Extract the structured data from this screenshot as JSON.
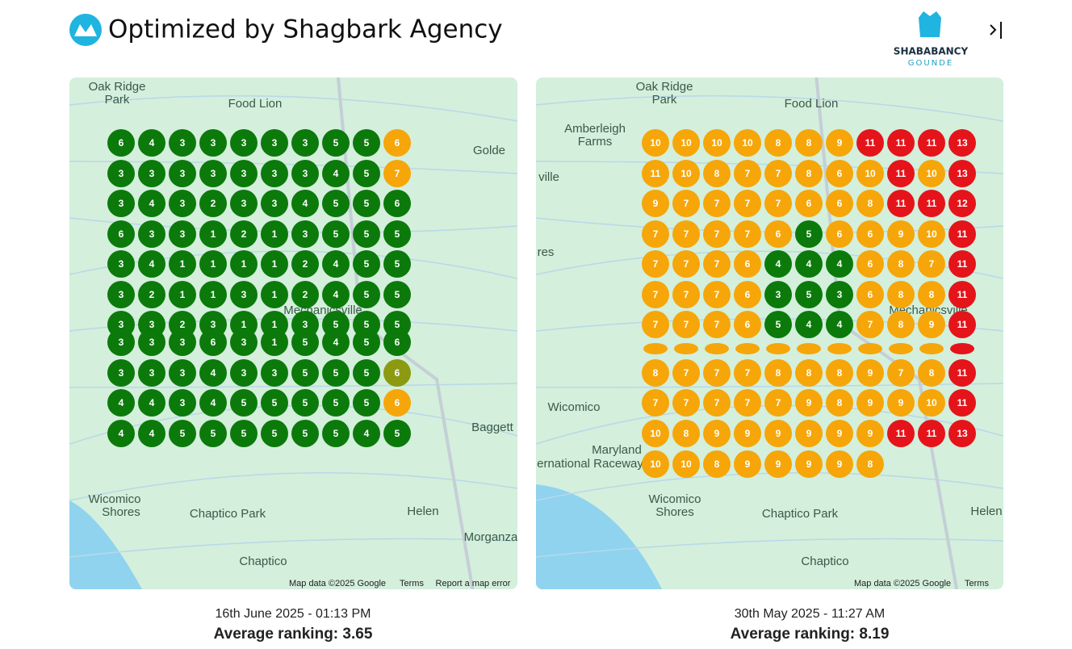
{
  "header": {
    "title": "Optimized by Shagbark Agency",
    "logo_text": "SHABABANCY",
    "logo_subtext": "GOUNDE"
  },
  "palette": {
    "g": "#0b7a0b",
    "o": "#f6a609",
    "r": "#e5141a",
    "y": "#8c9a12"
  },
  "maps": [
    {
      "cells": [
        [
          6,
          4,
          3,
          3,
          3,
          3,
          3,
          5,
          5,
          6
        ],
        [
          3,
          3,
          3,
          3,
          3,
          3,
          3,
          4,
          5,
          7
        ],
        [
          3,
          4,
          3,
          2,
          3,
          3,
          4,
          5,
          5,
          6
        ],
        [
          6,
          3,
          3,
          1,
          2,
          1,
          3,
          5,
          5,
          5
        ],
        [
          3,
          4,
          1,
          1,
          1,
          1,
          2,
          4,
          5,
          5
        ],
        [
          3,
          2,
          1,
          1,
          3,
          1,
          2,
          4,
          5,
          5
        ],
        [
          3,
          3,
          2,
          3,
          1,
          1,
          3,
          5,
          5,
          5
        ],
        [
          3,
          3,
          3,
          6,
          3,
          1,
          5,
          4,
          5,
          6
        ],
        [
          3,
          3,
          3,
          4,
          3,
          3,
          5,
          5,
          5,
          6
        ],
        [
          4,
          4,
          3,
          4,
          5,
          5,
          5,
          5,
          5,
          6
        ],
        [
          4,
          4,
          5,
          5,
          5,
          5,
          5,
          5,
          4,
          5
        ]
      ],
      "colors": [
        "gggggggggo",
        "gggggggggo",
        "gggggggggg",
        "gggggggggg",
        "gggggggggg",
        "gggggggggg",
        "gggggggggg",
        "gggggggggg",
        "gggggggggy",
        "gggggggggo",
        "gggggggggg"
      ],
      "labels": [
        "Oak Ridge",
        "Park",
        "Food Lion",
        "Golde",
        "Wicomico",
        "Shores",
        "Chaptico Park",
        "Helen",
        "Morganza",
        "Chaptico",
        "Mechanicsville",
        "Baggett"
      ],
      "attribution": [
        "Map data ©2025 Google",
        "Terms",
        "Report a map error"
      ],
      "timestamp": "16th June 2025 - 01:13 PM",
      "average": "Average ranking: 3.65"
    },
    {
      "cells": [
        [
          10,
          10,
          10,
          10,
          8,
          8,
          9,
          11,
          11,
          11,
          13
        ],
        [
          11,
          10,
          8,
          7,
          7,
          8,
          6,
          10,
          11,
          10,
          13
        ],
        [
          9,
          7,
          7,
          7,
          7,
          6,
          6,
          8,
          11,
          11,
          12
        ],
        [
          7,
          7,
          7,
          7,
          6,
          5,
          6,
          6,
          9,
          10,
          11
        ],
        [
          7,
          7,
          7,
          6,
          4,
          4,
          4,
          6,
          8,
          7,
          11
        ],
        [
          7,
          7,
          7,
          6,
          3,
          5,
          3,
          6,
          8,
          8,
          11
        ],
        [
          7,
          7,
          7,
          6,
          5,
          4,
          4,
          7,
          8,
          9,
          11
        ],
        [
          null,
          null,
          null,
          null,
          null,
          null,
          null,
          null,
          null,
          null,
          null
        ],
        [
          8,
          7,
          7,
          7,
          8,
          8,
          8,
          9,
          7,
          8,
          11
        ],
        [
          7,
          7,
          7,
          7,
          7,
          9,
          8,
          9,
          9,
          10,
          11
        ],
        [
          10,
          8,
          9,
          9,
          9,
          9,
          9,
          9,
          11,
          11,
          13
        ],
        [
          10,
          10,
          8,
          9,
          9,
          9,
          9,
          8
        ]
      ],
      "colors": [
        "ooooooorrrr",
        "ooooooooror",
        "oooooooorrr",
        "ooooogoooor",
        "oooogggooor",
        "oooogggooor",
        "oooogggooor",
        "oooooooooor",
        "oooooooooor",
        "oooooooooor",
        "oooooooorrr",
        "oooooooo"
      ],
      "labels": [
        "Oak Ridge",
        "Park",
        "Food Lion",
        "Amberleigh",
        "Farms",
        "ville",
        "res",
        "Wicomico",
        "Maryland",
        "ernational Raceway",
        "Wicomico",
        "Shores",
        "Chaptico Park",
        "Helen",
        "Chaptico",
        "Mechanicsville"
      ],
      "attribution": [
        "Map data ©2025 Google",
        "Terms"
      ],
      "timestamp": "30th May 2025 - 11:27 AM",
      "average": "Average ranking: 8.19"
    }
  ]
}
